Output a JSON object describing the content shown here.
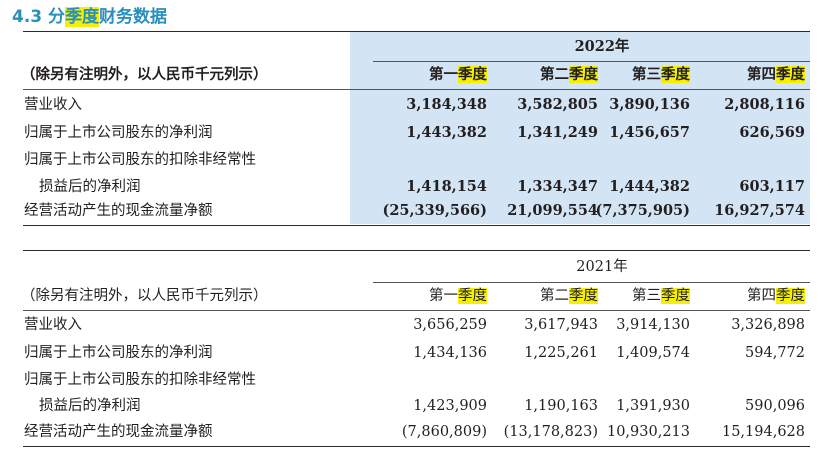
{
  "title": {
    "prefix": "4.3 分",
    "highlight": "季度",
    "suffix": "财务数据"
  },
  "tables": [
    {
      "year": "2022年",
      "unit_note": "（除另有注明外，以人民币千元列示）",
      "quarters": [
        {
          "pre": "第一",
          "hl": "季度"
        },
        {
          "pre": "第二",
          "hl": "季度"
        },
        {
          "pre": "第三",
          "hl": "季度"
        },
        {
          "pre": "第四",
          "hl": "季度"
        }
      ],
      "rows": [
        {
          "label": "营业收入",
          "values": [
            "3,184,348",
            "3,582,805",
            "3,890,136",
            "2,808,116"
          ]
        },
        {
          "label": "归属于上市公司股东的净利润",
          "values": [
            "1,443,382",
            "1,341,249",
            "1,456,657",
            "626,569"
          ]
        },
        {
          "label": "归属于上市公司股东的扣除非经常性"
        },
        {
          "label": "损益后的净利润",
          "values": [
            "1,418,154",
            "1,334,347",
            "1,444,382",
            "603,117"
          ]
        },
        {
          "label": "经营活动产生的现金流量净额",
          "values": [
            "(25,339,566)",
            "21,099,554",
            "(7,375,905)",
            "16,927,574"
          ]
        }
      ]
    },
    {
      "year": "2021年",
      "unit_note": "（除另有注明外，以人民币千元列示）",
      "quarters": [
        {
          "pre": "第一",
          "hl": "季度"
        },
        {
          "pre": "第二",
          "hl": "季度"
        },
        {
          "pre": "第三",
          "hl": "季度"
        },
        {
          "pre": "第四",
          "hl": "季度"
        }
      ],
      "rows": [
        {
          "label": "营业收入",
          "values": [
            "3,656,259",
            "3,617,943",
            "3,914,130",
            "3,326,898"
          ]
        },
        {
          "label": "归属于上市公司股东的净利润",
          "values": [
            "1,434,136",
            "1,225,261",
            "1,409,574",
            "594,772"
          ]
        },
        {
          "label": "归属于上市公司股东的扣除非经常性"
        },
        {
          "label": "损益后的净利润",
          "values": [
            "1,423,909",
            "1,190,163",
            "1,391,930",
            "590,096"
          ]
        },
        {
          "label": "经营活动产生的现金流量净额",
          "values": [
            "(7,860,809)",
            "(13,178,823)",
            "10,930,213",
            "15,194,628"
          ]
        }
      ]
    }
  ]
}
